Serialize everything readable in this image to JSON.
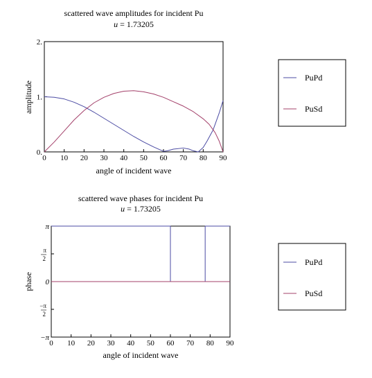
{
  "colors": {
    "PuPd": "#4b4ba3",
    "PuSd": "#a3406a",
    "axis": "#000000"
  },
  "chart_data": [
    {
      "type": "line",
      "title": "scattered wave amplitudes for incident Pu",
      "subtitle_var": "u",
      "subtitle_value": "= 1.73205",
      "xlabel": "angle of incident wave",
      "ylabel": "amplitude",
      "xlim": [
        0,
        90
      ],
      "ylim": [
        0,
        2
      ],
      "xticks": [
        "0",
        "10",
        "20",
        "30",
        "40",
        "50",
        "60",
        "70",
        "80",
        "90"
      ],
      "yticks": [
        {
          "label": "0.",
          "value": 0
        },
        {
          "label": "1.",
          "value": 1
        },
        {
          "label": "2.",
          "value": 2
        }
      ],
      "legend": [
        "PuPd",
        "PuSd"
      ],
      "series": [
        {
          "name": "PuPd",
          "x": [
            0,
            5,
            10,
            15,
            20,
            25,
            30,
            35,
            40,
            45,
            50,
            55,
            60,
            62,
            65,
            70,
            73,
            75,
            77.5,
            80,
            82,
            85,
            88,
            90
          ],
          "y": [
            1.0,
            0.99,
            0.96,
            0.9,
            0.82,
            0.72,
            0.61,
            0.5,
            0.39,
            0.28,
            0.18,
            0.09,
            0.01,
            0.02,
            0.05,
            0.07,
            0.05,
            0.02,
            0.0,
            0.08,
            0.2,
            0.4,
            0.7,
            0.93
          ]
        },
        {
          "name": "PuSd",
          "x": [
            0,
            5,
            10,
            15,
            20,
            25,
            30,
            35,
            40,
            45,
            50,
            55,
            60,
            65,
            70,
            75,
            80,
            83,
            86,
            88,
            90
          ],
          "y": [
            0.0,
            0.18,
            0.38,
            0.58,
            0.75,
            0.89,
            0.99,
            1.06,
            1.1,
            1.11,
            1.09,
            1.05,
            0.99,
            0.91,
            0.83,
            0.73,
            0.6,
            0.5,
            0.35,
            0.2,
            0.0
          ]
        }
      ]
    },
    {
      "type": "line",
      "title": "scattered wave phases for incident Pu",
      "subtitle_var": "u",
      "subtitle_value": "= 1.73205",
      "xlabel": "angle of incident wave",
      "ylabel": "phase",
      "xlim": [
        0,
        90
      ],
      "ylim": [
        -3.14159,
        3.14159
      ],
      "xticks": [
        "0",
        "10",
        "20",
        "30",
        "40",
        "50",
        "60",
        "70",
        "80",
        "90"
      ],
      "yticks": [
        {
          "label": "π",
          "value": 3.14159
        },
        {
          "label": "π/2",
          "value": 1.5708
        },
        {
          "label": "0",
          "value": 0
        },
        {
          "label": "−π/2",
          "value": -1.5708
        },
        {
          "label": "−π",
          "value": -3.14159
        }
      ],
      "legend": [
        "PuPd",
        "PuSd"
      ],
      "series": [
        {
          "name": "PuPd",
          "x": [
            0,
            60,
            60,
            77.5,
            77.5,
            90
          ],
          "y": [
            3.14159,
            3.14159,
            0,
            0,
            3.14159,
            3.14159
          ]
        },
        {
          "name": "PuSd",
          "x": [
            0,
            90
          ],
          "y": [
            0,
            0
          ]
        }
      ]
    }
  ]
}
